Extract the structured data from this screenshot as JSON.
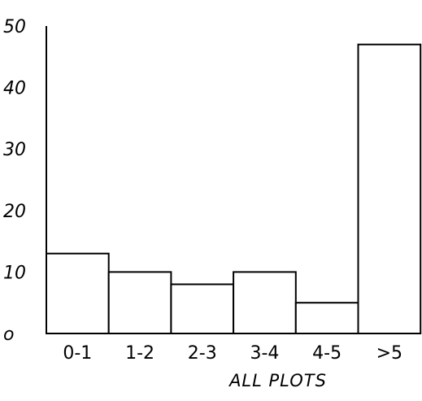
{
  "chart_data": {
    "type": "bar",
    "categories": [
      "0-1",
      "1-2",
      "2-3",
      "3-4",
      "4-5",
      ">5"
    ],
    "values": [
      13,
      10,
      8,
      10,
      5,
      47
    ],
    "ylim": [
      0,
      50
    ],
    "yticks": [
      0,
      10,
      20,
      30,
      40,
      50
    ],
    "ytick_labels": [
      "o",
      "10",
      "20",
      "30",
      "40",
      "50"
    ],
    "xlabel": "ALL PLOTS",
    "grid": false,
    "bar_fill": "#ffffff",
    "bar_stroke": "#000000"
  }
}
